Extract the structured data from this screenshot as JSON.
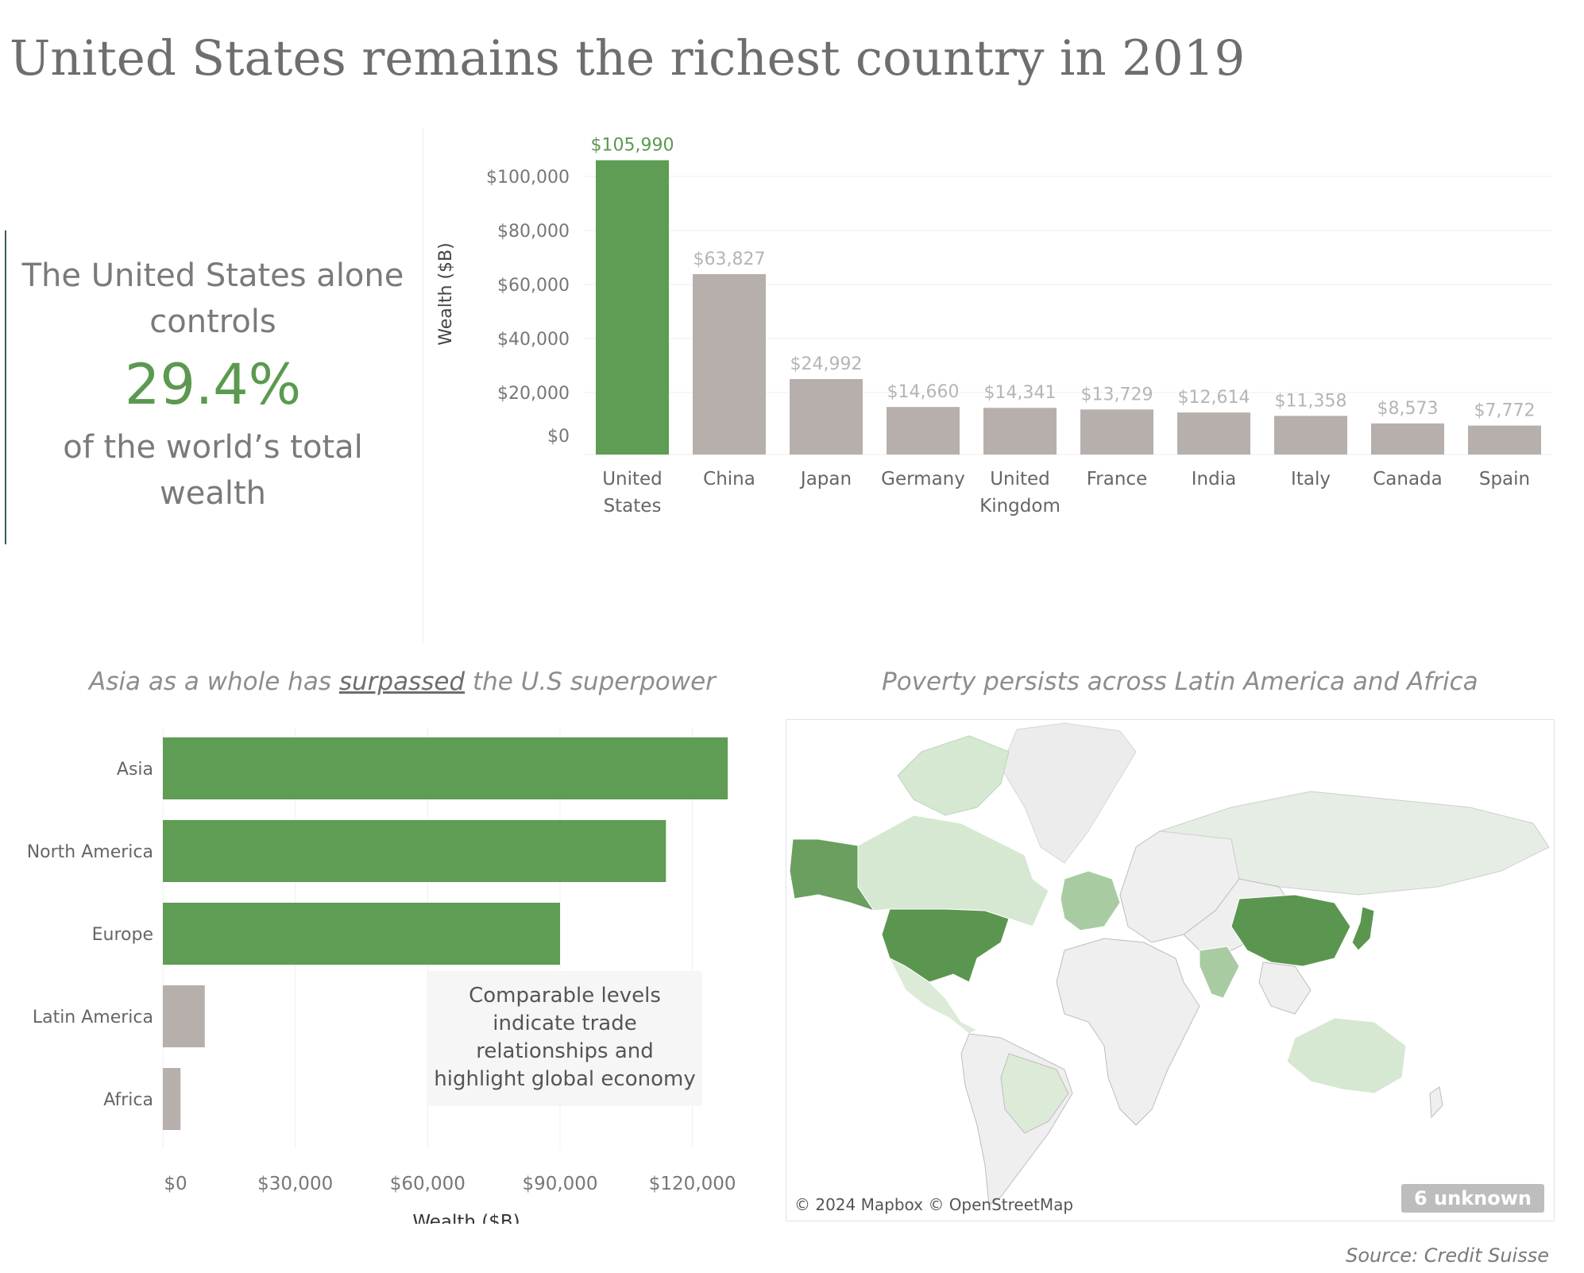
{
  "header": {
    "title": "United States remains the richest country in 2019"
  },
  "kpi": {
    "line1": "The United States alone",
    "line2": "controls",
    "value": "29.4%",
    "line3": "of the world’s total",
    "line4": "wealth"
  },
  "colors": {
    "highlight": "#5f9c54",
    "muted": "#b7afab",
    "highlight_label": "#5b9950",
    "muted_label": "#b5b5b5"
  },
  "chart_data": [
    {
      "type": "bar",
      "orientation": "vertical",
      "ylabel": "Wealth ($B)",
      "ylim": [
        0,
        110000
      ],
      "yticks": [
        "$0",
        "$20,000",
        "$40,000",
        "$60,000",
        "$80,000",
        "$100,000"
      ],
      "ytick_values": [
        0,
        20000,
        40000,
        60000,
        80000,
        100000
      ],
      "categories": [
        "United\nStates",
        "China",
        "Japan",
        "Germany",
        "United\nKingdom",
        "France",
        "India",
        "Italy",
        "Canada",
        "Spain"
      ],
      "values": [
        105990,
        63827,
        24992,
        14660,
        14341,
        13729,
        12614,
        11358,
        8573,
        7772
      ],
      "value_labels": [
        "$105,990",
        "$63,827",
        "$24,992",
        "$14,660",
        "$14,341",
        "$13,729",
        "$12,614",
        "$11,358",
        "$8,573",
        "$7,772"
      ],
      "highlighted": [
        true,
        false,
        false,
        false,
        false,
        false,
        false,
        false,
        false,
        false
      ],
      "grid": true
    },
    {
      "type": "bar",
      "orientation": "horizontal",
      "title": "Asia as a whole has surpassed the U.S superpower",
      "xlabel": "Wealth ($B)",
      "xlim": [
        0,
        135000
      ],
      "xticks": [
        "$0",
        "$30,000",
        "$60,000",
        "$90,000",
        "$120,000"
      ],
      "xtick_values": [
        0,
        30000,
        60000,
        90000,
        120000
      ],
      "categories": [
        "Asia",
        "North America",
        "Europe",
        "Latin America",
        "Africa"
      ],
      "values": [
        128000,
        114000,
        90000,
        9500,
        4000
      ],
      "highlighted": [
        true,
        true,
        true,
        false,
        false
      ],
      "grid": true
    }
  ],
  "region_chart": {
    "title_pre": "Asia as a whole has ",
    "title_emph": "surpassed",
    "title_post": " the U.S superpower",
    "annotation": "Comparable levels indicate trade relationships and highlight global economy"
  },
  "map": {
    "title": "Poverty persists across Latin America and Africa",
    "credit": "© 2024 Mapbox © OpenStreetMap",
    "unknown_badge": "6 unknown"
  },
  "footer": {
    "source": "Source: Credit Suisse"
  }
}
